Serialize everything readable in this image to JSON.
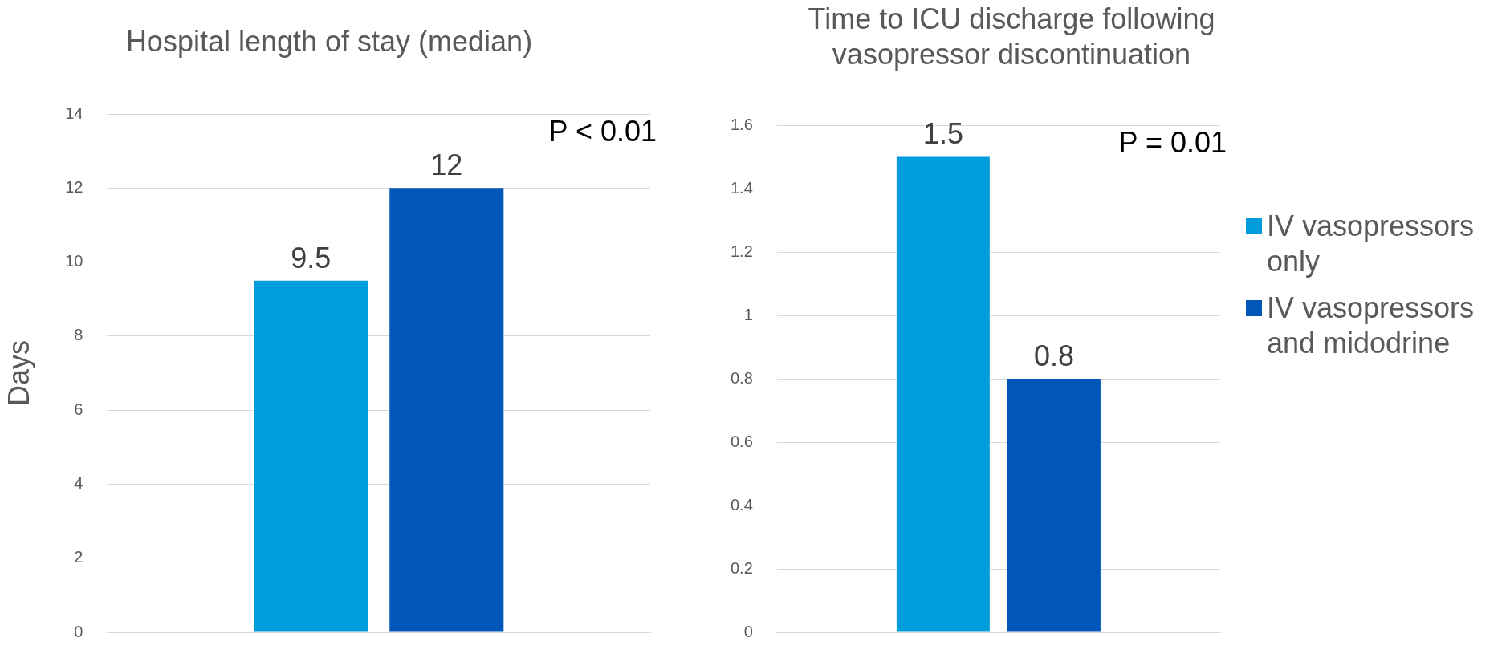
{
  "chart_data": [
    {
      "type": "bar",
      "title": "Hospital length of stay (median)",
      "ylabel": "Days",
      "categories": [
        null
      ],
      "series": [
        {
          "color": "#009ddc",
          "values": [
            9.5
          ]
        },
        {
          "color": "#0057b8",
          "values": [
            12
          ]
        }
      ],
      "ylim": [
        0,
        14
      ],
      "yticks": [
        0,
        2,
        4,
        6,
        8,
        10,
        12,
        14
      ],
      "grid": "y",
      "data_labels": true,
      "legend": false,
      "annotations": [
        "P < 0.01"
      ]
    },
    {
      "type": "bar",
      "title": "Time to ICU discharge following vasopressor discontinuation",
      "categories": [
        null
      ],
      "series": [
        {
          "name": "IV vasopressors only",
          "color": "#009ddc",
          "values": [
            1.5
          ]
        },
        {
          "name": "IV vasopressors and midodrine",
          "color": "#0057b8",
          "values": [
            0.8
          ]
        }
      ],
      "ylim": [
        0,
        1.6
      ],
      "yticks": [
        0,
        0.2,
        0.4,
        0.6,
        0.8,
        1,
        1.2,
        1.4,
        1.6
      ],
      "grid": "y",
      "data_labels": true,
      "legend": "right",
      "annotations": [
        "P = 0.01"
      ]
    }
  ]
}
